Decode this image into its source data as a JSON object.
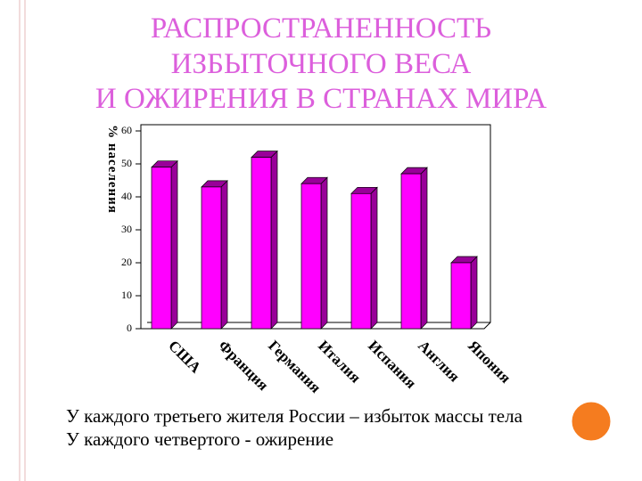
{
  "chart_data": {
    "type": "bar3d",
    "title": [
      "РАСПРОСТРАНЕННОСТЬ",
      "ИЗБЫТОЧНОГО ВЕСА",
      "И ОЖИРЕНИЯ В СТРАНАХ МИРА"
    ],
    "y_label": "% населения",
    "categories": [
      "США",
      "Франция",
      "Германия",
      "Италия",
      "Испания",
      "Англия",
      "Япония"
    ],
    "values": [
      49,
      43,
      52,
      44,
      41,
      47,
      20
    ],
    "color": "#ff00ff",
    "side_color": "#990099",
    "ylim": [
      0,
      60
    ],
    "yticks": [
      0,
      10,
      20,
      30,
      40,
      50,
      60
    ],
    "annotations": [
      "У каждого третьего жителя России – избыток массы тела",
      "У каждого четвертого  - ожирение"
    ]
  }
}
